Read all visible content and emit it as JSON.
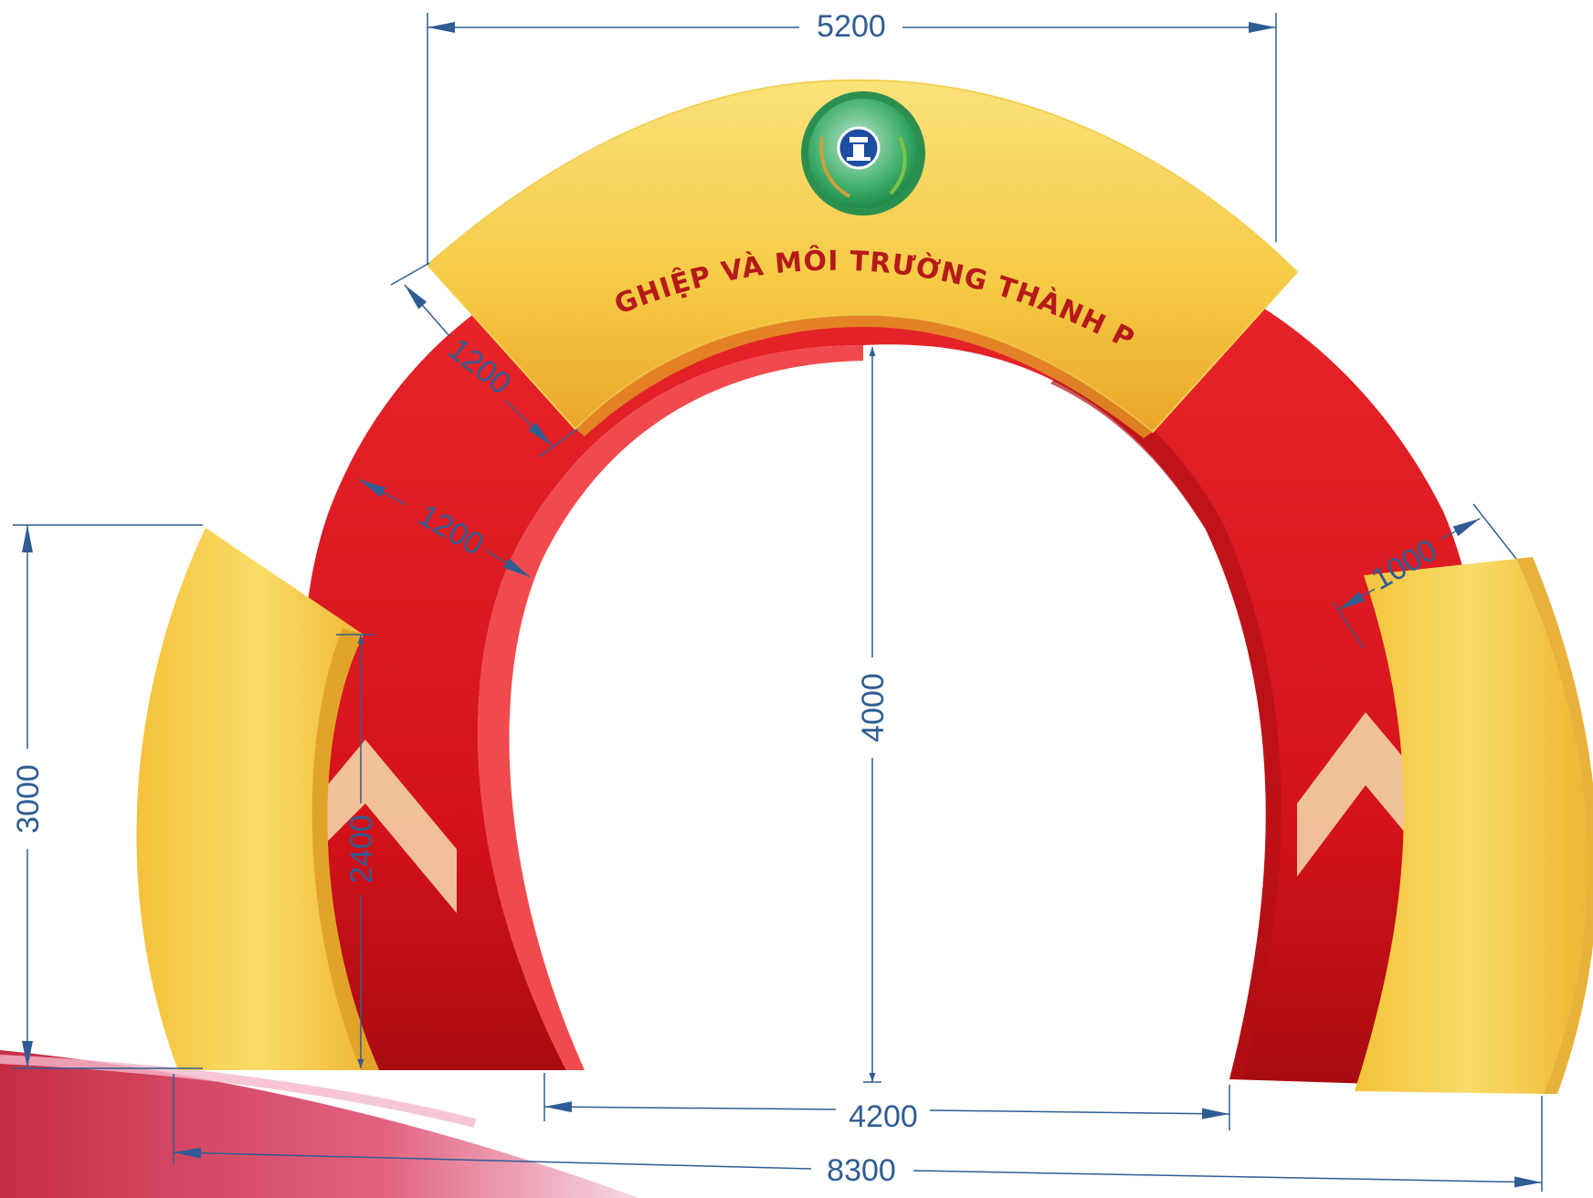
{
  "arch": {
    "banner_text": "SỞ NÔNG NGHIỆP VÀ MÔI TRƯỜNG THÀNH PHỐ HÀ NỘI",
    "logo_icon": "hanoi-emblem-icon",
    "colors": {
      "red": "#d9141b",
      "red_dark": "#a80d12",
      "yellow": "#f7d44c",
      "yellow_dark": "#eaa72a",
      "dimension_line": "#2f5d93"
    }
  },
  "dimensions": {
    "top_width": "5200",
    "overall_width": "8300",
    "opening_width": "4200",
    "opening_height": "4000",
    "side_height": "3000",
    "inner_side_height": "2400",
    "banner_thickness": "1200",
    "arch_thickness": "1200",
    "side_panel_width": "1000"
  }
}
